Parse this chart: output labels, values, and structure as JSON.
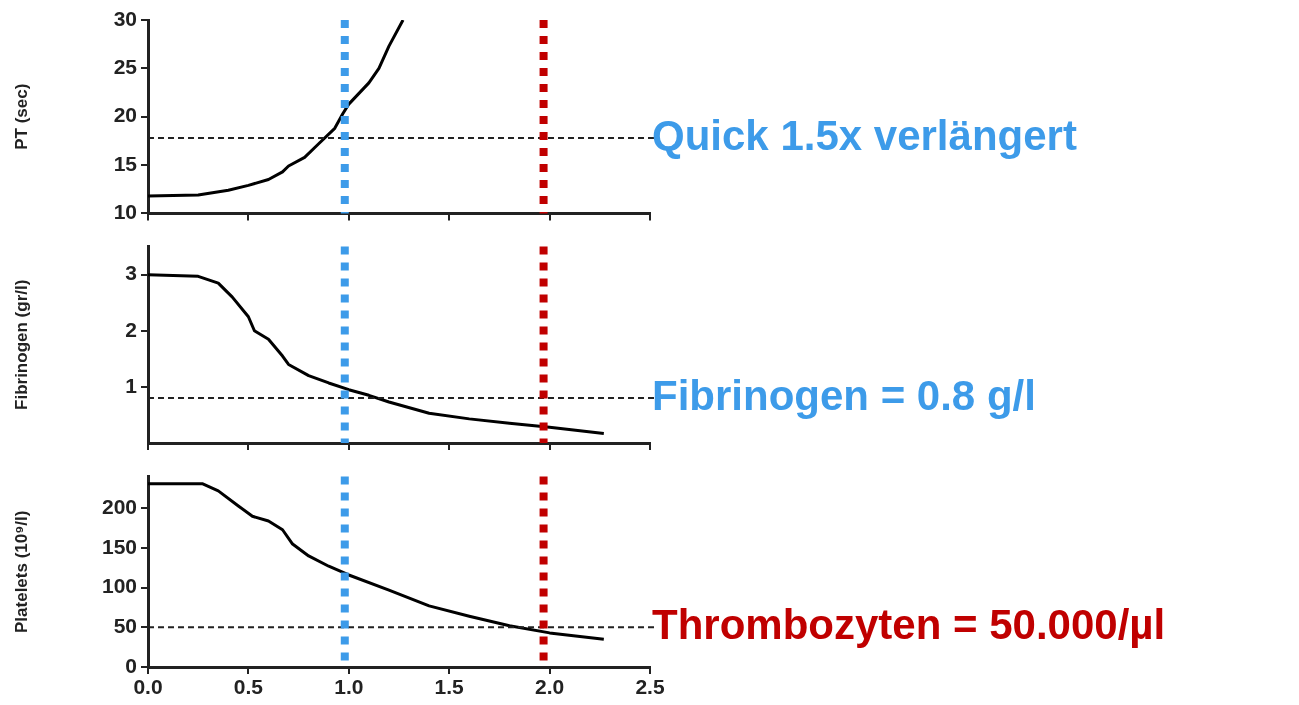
{
  "chart_data": [
    {
      "type": "line",
      "ylabel": "PT (sec)",
      "xlim": [
        0,
        2.5
      ],
      "xticks": [
        0,
        0.5,
        1,
        1.5,
        2,
        2.5
      ],
      "ylim": [
        10,
        30
      ],
      "yticks": [
        10,
        15,
        20,
        25,
        30
      ],
      "tick_labels": "y",
      "grid": false,
      "legend": false,
      "marker": "none",
      "line_style": "solid",
      "series": [
        {
          "color": "#000000",
          "x": [
            0,
            0.25,
            0.4,
            0.5,
            0.6,
            0.67,
            0.7,
            0.78,
            0.85,
            0.93,
            0.97,
            1.0,
            1.1,
            1.15,
            1.2,
            1.27
          ],
          "values": [
            11.8,
            11.9,
            12.4,
            12.9,
            13.5,
            14.3,
            14.9,
            15.8,
            17.2,
            18.8,
            20.3,
            21.3,
            23.5,
            25,
            27.3,
            30
          ]
        }
      ],
      "ref_lines": [
        {
          "axis": "y",
          "value": 17.8,
          "label": "Quick 1.5x verlängert",
          "color": "#222222",
          "line_style": "dashed"
        },
        {
          "axis": "x",
          "value": 0.98,
          "color": "#3d9be9",
          "line_style": "dotted"
        },
        {
          "axis": "x",
          "value": 1.97,
          "color": "#c00000",
          "line_style": "dotted"
        }
      ]
    },
    {
      "type": "line",
      "ylabel": "Fibrinogen (gr/l)",
      "xlim": [
        0,
        2.5
      ],
      "xticks": [
        0,
        0.5,
        1,
        1.5,
        2,
        2.5
      ],
      "ylim": [
        0,
        3.5
      ],
      "yticks": [
        1,
        2,
        3
      ],
      "tick_labels": "y",
      "grid": false,
      "legend": false,
      "marker": "none",
      "line_style": "solid",
      "series": [
        {
          "color": "#000000",
          "x": [
            0,
            0.25,
            0.35,
            0.42,
            0.5,
            0.53,
            0.6,
            0.67,
            0.7,
            0.8,
            0.9,
            1.0,
            1.1,
            1.2,
            1.4,
            1.6,
            1.8,
            2.0,
            2.27
          ],
          "values": [
            3.0,
            2.97,
            2.85,
            2.6,
            2.25,
            2.0,
            1.85,
            1.55,
            1.4,
            1.2,
            1.07,
            0.95,
            0.85,
            0.73,
            0.53,
            0.43,
            0.35,
            0.28,
            0.17
          ]
        }
      ],
      "ref_lines": [
        {
          "axis": "y",
          "value": 0.8,
          "label": "Fibrinogen = 0.8 g/l",
          "color": "#222222",
          "line_style": "dashed"
        },
        {
          "axis": "x",
          "value": 0.98,
          "color": "#3d9be9",
          "line_style": "dotted"
        },
        {
          "axis": "x",
          "value": 1.97,
          "color": "#c00000",
          "line_style": "dotted"
        }
      ]
    },
    {
      "type": "line",
      "ylabel": "Platelets (10⁹/l)",
      "xlim": [
        0,
        2.5
      ],
      "xticks": [
        {
          "value": 0,
          "label": "0.0"
        },
        0.5,
        {
          "value": 1,
          "label": "1.0"
        },
        1.5,
        {
          "value": 2,
          "label": "2.0"
        },
        2.5
      ],
      "ylim": [
        0,
        240
      ],
      "yticks": [
        0,
        50,
        100,
        150,
        200
      ],
      "grid": false,
      "legend": false,
      "marker": "none",
      "line_style": "solid",
      "series": [
        {
          "color": "#000000",
          "x": [
            0,
            0.27,
            0.35,
            0.45,
            0.52,
            0.6,
            0.67,
            0.72,
            0.8,
            0.9,
            1.0,
            1.2,
            1.4,
            1.6,
            1.8,
            2.0,
            2.27
          ],
          "values": [
            231,
            231,
            222,
            203,
            190,
            184,
            173,
            155,
            140,
            127,
            116,
            97,
            77,
            64,
            52,
            43,
            35
          ]
        }
      ],
      "ref_lines": [
        {
          "axis": "y",
          "value": 50,
          "label": "Thrombozyten = 50.000/µl",
          "color": "#222222",
          "line_style": "dashed"
        },
        {
          "axis": "x",
          "value": 0.98,
          "color": "#3d9be9",
          "line_style": "dotted"
        },
        {
          "axis": "x",
          "value": 1.97,
          "color": "#c00000",
          "line_style": "dotted"
        }
      ]
    }
  ]
}
